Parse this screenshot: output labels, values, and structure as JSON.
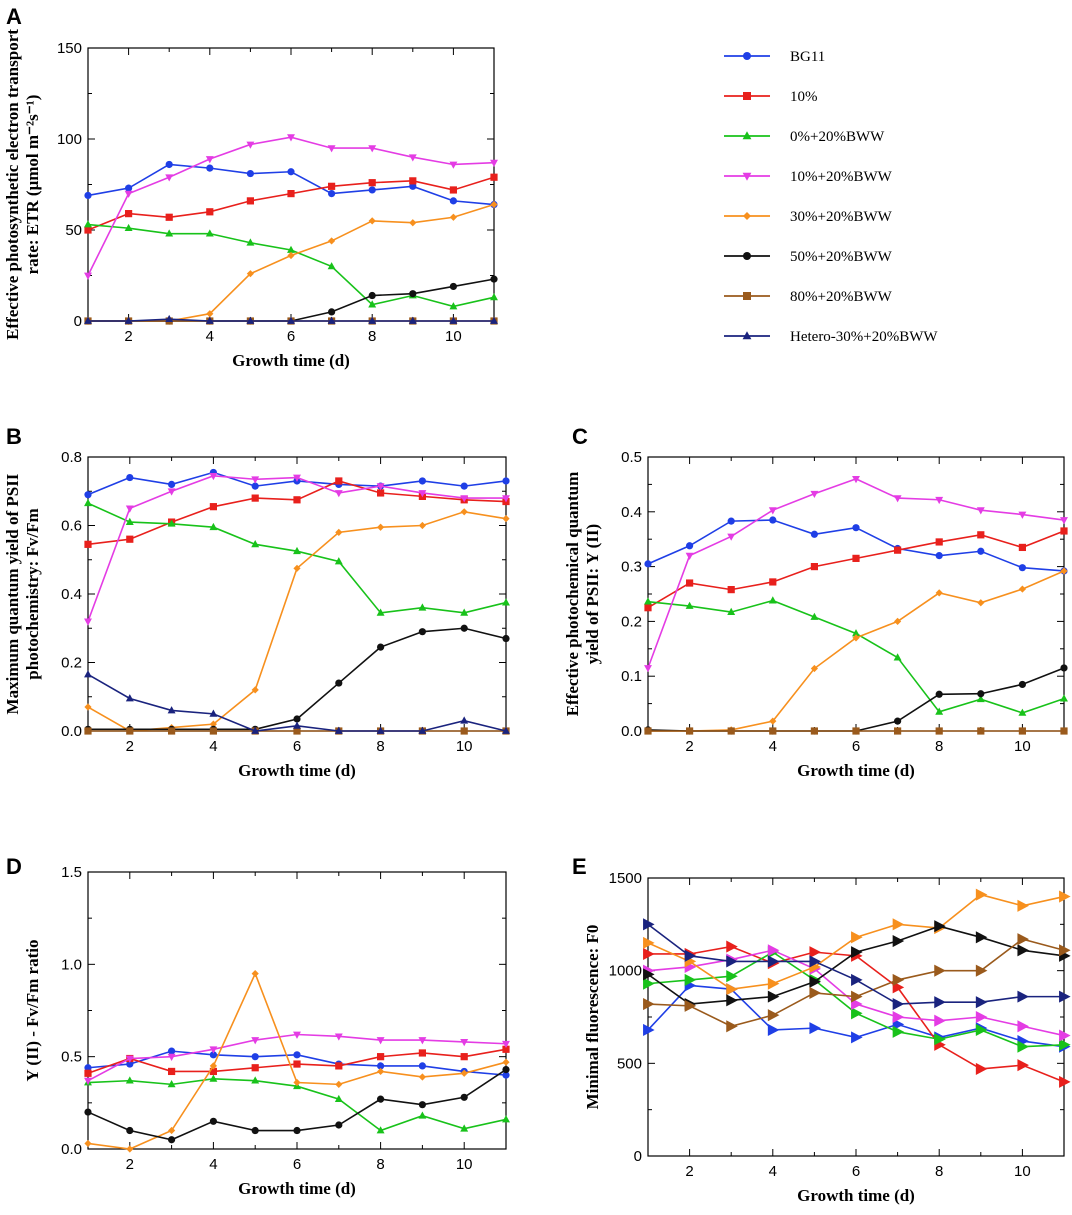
{
  "figure": {
    "legend": [
      {
        "name": "BG11",
        "color": "#1f3fe6",
        "marker": "circle"
      },
      {
        "name": "10%",
        "color": "#e8201c",
        "marker": "square"
      },
      {
        "name": "0%+20%BWW",
        "color": "#18c21a",
        "marker": "triangle-up"
      },
      {
        "name": "10%+20%BWW",
        "color": "#e43ce4",
        "marker": "triangle-down"
      },
      {
        "name": "30%+20%BWW",
        "color": "#f7901e",
        "marker": "diamond"
      },
      {
        "name": "50%+20%BWW",
        "color": "#111111",
        "marker": "circle"
      },
      {
        "name": "80%+20%BWW",
        "color": "#9a5a1c",
        "marker": "square"
      },
      {
        "name": "Hetero-30%+20%BWW",
        "color": "#1a237e",
        "marker": "triangle-up"
      }
    ]
  },
  "chart_data": [
    {
      "panel": "A",
      "type": "line",
      "xlabel": "Growth time (d)",
      "ylabel_lines": [
        "Effective photosynthetic electron transport",
        "rate: ETR (μmol m⁻²s⁻¹)"
      ],
      "xlim": [
        1,
        11
      ],
      "ylim": [
        0,
        150
      ],
      "xticks": [
        2,
        4,
        6,
        8,
        10
      ],
      "yticks": [
        0,
        50,
        100,
        150
      ],
      "x": [
        1,
        2,
        3,
        4,
        5,
        6,
        7,
        8,
        9,
        10,
        11
      ],
      "series": [
        {
          "name": "BG11",
          "values": [
            69,
            73,
            86,
            84,
            81,
            82,
            70,
            72,
            74,
            66,
            64
          ]
        },
        {
          "name": "10%",
          "values": [
            50,
            59,
            57,
            60,
            66,
            70,
            74,
            76,
            77,
            72,
            79
          ]
        },
        {
          "name": "0%+20%BWW",
          "values": [
            53,
            51,
            48,
            48,
            43,
            39,
            30,
            9,
            14,
            8,
            13
          ]
        },
        {
          "name": "10%+20%BWW",
          "values": [
            25,
            70,
            79,
            89,
            97,
            101,
            95,
            95,
            90,
            86,
            87
          ]
        },
        {
          "name": "30%+20%BWW",
          "values": [
            0,
            0,
            0,
            4,
            26,
            36,
            44,
            55,
            54,
            57,
            64
          ]
        },
        {
          "name": "50%+20%BWW",
          "values": [
            0,
            0,
            0,
            0,
            0,
            0,
            5,
            14,
            15,
            19,
            23
          ]
        },
        {
          "name": "80%+20%BWW",
          "values": [
            0,
            0,
            0,
            0,
            0,
            0,
            0,
            0,
            0,
            0,
            0
          ]
        },
        {
          "name": "Hetero-30%+20%BWW",
          "values": [
            0,
            0,
            1,
            0,
            0,
            0,
            0,
            0,
            0,
            0,
            0
          ]
        }
      ]
    },
    {
      "panel": "B",
      "type": "line",
      "xlabel": "Growth time (d)",
      "ylabel_lines": [
        "Maximum quantum yield of PSII",
        "photochemistry: Fv/Fm"
      ],
      "xlim": [
        1,
        11
      ],
      "ylim": [
        0,
        0.8
      ],
      "xticks": [
        2,
        4,
        6,
        8,
        10
      ],
      "yticks": [
        0.0,
        0.2,
        0.4,
        0.6,
        0.8
      ],
      "x": [
        1,
        2,
        3,
        4,
        5,
        6,
        7,
        8,
        9,
        10,
        11
      ],
      "series": [
        {
          "name": "BG11",
          "values": [
            0.69,
            0.74,
            0.72,
            0.755,
            0.715,
            0.73,
            0.72,
            0.715,
            0.73,
            0.715,
            0.73
          ]
        },
        {
          "name": "10%",
          "values": [
            0.545,
            0.56,
            0.61,
            0.655,
            0.68,
            0.675,
            0.73,
            0.695,
            0.685,
            0.675,
            0.67
          ]
        },
        {
          "name": "0%+20%BWW",
          "values": [
            0.665,
            0.61,
            0.605,
            0.595,
            0.545,
            0.525,
            0.495,
            0.345,
            0.36,
            0.345,
            0.375
          ]
        },
        {
          "name": "10%+20%BWW",
          "values": [
            0.32,
            0.65,
            0.7,
            0.745,
            0.735,
            0.74,
            0.695,
            0.715,
            0.695,
            0.68,
            0.68
          ]
        },
        {
          "name": "30%+20%BWW",
          "values": [
            0.07,
            0.0,
            0.01,
            0.02,
            0.12,
            0.475,
            0.58,
            0.595,
            0.6,
            0.64,
            0.62
          ]
        },
        {
          "name": "50%+20%BWW",
          "values": [
            0.005,
            0.005,
            0.005,
            0.005,
            0.005,
            0.035,
            0.14,
            0.245,
            0.29,
            0.3,
            0.27
          ]
        },
        {
          "name": "80%+20%BWW",
          "values": [
            0.0,
            0.0,
            0.0,
            0.0,
            0.0,
            0.0,
            0.0,
            0.0,
            0.0,
            0.0,
            0.0
          ]
        },
        {
          "name": "Hetero-30%+20%BWW",
          "values": [
            0.165,
            0.095,
            0.06,
            0.05,
            0.0,
            0.015,
            0.0,
            0.0,
            0.0,
            0.03,
            0.0
          ]
        }
      ]
    },
    {
      "panel": "C",
      "type": "line",
      "xlabel": "Growth time (d)",
      "ylabel_lines": [
        "Effective photochemical quantum",
        "yield of PSII: Y (II)"
      ],
      "xlim": [
        1,
        11
      ],
      "ylim": [
        0,
        0.5
      ],
      "xticks": [
        2,
        4,
        6,
        8,
        10
      ],
      "yticks": [
        0.0,
        0.1,
        0.2,
        0.3,
        0.4,
        0.5
      ],
      "x": [
        1,
        2,
        3,
        4,
        5,
        6,
        7,
        8,
        9,
        10,
        11
      ],
      "series": [
        {
          "name": "BG11",
          "values": [
            0.305,
            0.338,
            0.383,
            0.385,
            0.359,
            0.371,
            0.333,
            0.32,
            0.328,
            0.298,
            0.292
          ]
        },
        {
          "name": "10%",
          "values": [
            0.225,
            0.27,
            0.258,
            0.272,
            0.3,
            0.315,
            0.33,
            0.345,
            0.358,
            0.335,
            0.365
          ]
        },
        {
          "name": "0%+20%BWW",
          "values": [
            0.236,
            0.228,
            0.217,
            0.238,
            0.208,
            0.178,
            0.134,
            0.035,
            0.058,
            0.033,
            0.059
          ]
        },
        {
          "name": "10%+20%BWW",
          "values": [
            0.115,
            0.32,
            0.355,
            0.403,
            0.433,
            0.46,
            0.425,
            0.422,
            0.403,
            0.395,
            0.385
          ]
        },
        {
          "name": "30%+20%BWW",
          "values": [
            0.0,
            0.0,
            0.002,
            0.018,
            0.114,
            0.17,
            0.2,
            0.252,
            0.234,
            0.259,
            0.292
          ]
        },
        {
          "name": "50%+20%BWW",
          "values": [
            0.002,
            0.0,
            0.0,
            0.0,
            0.0,
            0.0,
            0.018,
            0.067,
            0.068,
            0.085,
            0.115
          ]
        },
        {
          "name": "80%+20%BWW",
          "values": [
            0.0,
            0.0,
            0.0,
            0.0,
            0.0,
            0.0,
            0.0,
            0.0,
            0.0,
            0.0,
            0.0
          ]
        }
      ]
    },
    {
      "panel": "D",
      "type": "line",
      "xlabel": "Growth time (d)",
      "ylabel_lines": [
        "Y (II) - Fv/Fm ratio"
      ],
      "xlim": [
        1,
        11
      ],
      "ylim": [
        0,
        1.5
      ],
      "xticks": [
        2,
        4,
        6,
        8,
        10
      ],
      "yticks": [
        0.0,
        0.5,
        1.0,
        1.5
      ],
      "x": [
        1,
        2,
        3,
        4,
        5,
        6,
        7,
        8,
        9,
        10,
        11
      ],
      "series": [
        {
          "name": "BG11",
          "values": [
            0.44,
            0.46,
            0.53,
            0.51,
            0.5,
            0.51,
            0.46,
            0.45,
            0.45,
            0.42,
            0.4
          ]
        },
        {
          "name": "10%",
          "values": [
            0.41,
            0.49,
            0.42,
            0.42,
            0.44,
            0.46,
            0.45,
            0.5,
            0.52,
            0.5,
            0.54
          ]
        },
        {
          "name": "0%+20%BWW",
          "values": [
            0.36,
            0.37,
            0.35,
            0.38,
            0.37,
            0.34,
            0.27,
            0.1,
            0.18,
            0.11,
            0.16
          ]
        },
        {
          "name": "10%+20%BWW",
          "values": [
            0.37,
            0.49,
            0.5,
            0.54,
            0.59,
            0.62,
            0.61,
            0.59,
            0.59,
            0.58,
            0.57
          ]
        },
        {
          "name": "30%+20%BWW",
          "values": [
            0.03,
            0.0,
            0.1,
            0.45,
            0.95,
            0.36,
            0.35,
            0.42,
            0.39,
            0.41,
            0.47
          ]
        },
        {
          "name": "50%+20%BWW",
          "values": [
            0.2,
            0.1,
            0.05,
            0.15,
            0.1,
            0.1,
            0.13,
            0.27,
            0.24,
            0.28,
            0.43
          ]
        }
      ]
    },
    {
      "panel": "E",
      "type": "line",
      "xlabel": "Growth time (d)",
      "ylabel_lines": [
        "Minimal fluorescence: F0"
      ],
      "xlim": [
        1,
        11
      ],
      "ylim": [
        0,
        1500
      ],
      "xticks": [
        2,
        4,
        6,
        8,
        10
      ],
      "yticks": [
        0,
        500,
        1000,
        1500
      ],
      "x": [
        1,
        2,
        3,
        4,
        5,
        6,
        7,
        8,
        9,
        10,
        11
      ],
      "series": [
        {
          "name": "BG11",
          "values": [
            680,
            920,
            900,
            680,
            690,
            640,
            710,
            640,
            690,
            620,
            590
          ]
        },
        {
          "name": "10%",
          "values": [
            1090,
            1090,
            1130,
            1040,
            1100,
            1080,
            910,
            600,
            470,
            490,
            400
          ]
        },
        {
          "name": "0%+20%BWW",
          "values": [
            930,
            950,
            970,
            1100,
            950,
            770,
            670,
            630,
            680,
            590,
            600
          ]
        },
        {
          "name": "10%+20%BWW",
          "values": [
            1000,
            1020,
            1060,
            1110,
            1010,
            820,
            750,
            730,
            750,
            700,
            650
          ]
        },
        {
          "name": "30%+20%BWW",
          "values": [
            1150,
            1050,
            900,
            930,
            1020,
            1180,
            1250,
            1230,
            1410,
            1350,
            1400
          ]
        },
        {
          "name": "50%+20%BWW",
          "values": [
            980,
            820,
            840,
            860,
            940,
            1100,
            1160,
            1240,
            1180,
            1110,
            1080
          ]
        },
        {
          "name": "80%+20%BWW",
          "values": [
            820,
            810,
            700,
            760,
            880,
            860,
            950,
            1000,
            1000,
            1170,
            1110
          ]
        },
        {
          "name": "Hetero-30%+20%BWW",
          "values": [
            1250,
            1080,
            1050,
            1050,
            1050,
            950,
            820,
            830,
            830,
            860,
            860
          ]
        }
      ]
    }
  ]
}
